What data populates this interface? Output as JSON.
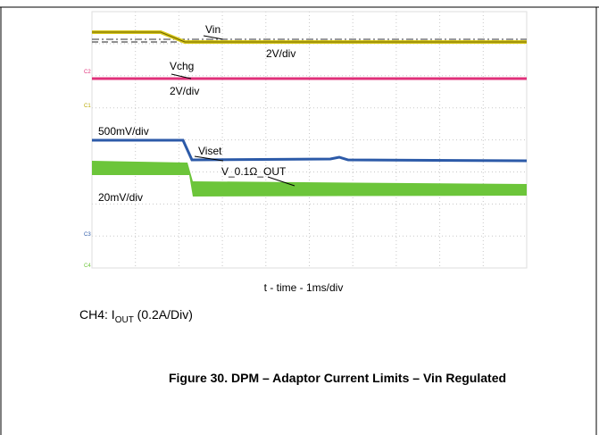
{
  "scope": {
    "trace_labels": [
      "Vin",
      "2V/div",
      "Vchg",
      "2V/div",
      "500mV/div",
      "Viset",
      "V_0.1Ω_OUT",
      "20mV/div"
    ],
    "channel_markers": [
      "C2",
      "C1",
      "C3",
      "C4"
    ],
    "time_label": "t - time - 1ms/div"
  },
  "note": {
    "prefix": "CH4: I",
    "subscript": "OUT",
    "suffix": " (0.2A/Div)"
  },
  "caption": "Figure 30. DPM – Adaptor Current Limits – Vin Regulated"
}
